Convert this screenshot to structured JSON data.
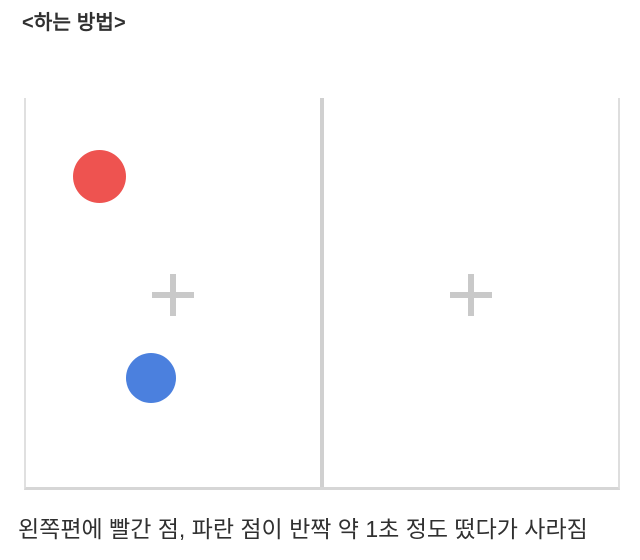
{
  "page": {
    "title": "<하는 방법>",
    "caption": "왼쪽편에 빨간 점, 파란 점이 반짝 약 1초 정도 떴다가 사라짐"
  },
  "display": {
    "left_panel": {
      "fixation_mark": "+",
      "stimuli": [
        {
          "name": "red-dot",
          "color": "#ee5350",
          "position": "upper-left"
        },
        {
          "name": "blue-dot",
          "color": "#4b80de",
          "position": "lower-middle"
        }
      ]
    },
    "right_panel": {
      "fixation_mark": "+",
      "stimuli": []
    }
  },
  "colors": {
    "red_dot": "#ee5350",
    "blue_dot": "#4b80de",
    "fixation_cross": "#c9c9c9",
    "panel_border": "#dedede",
    "divider": "#d0d0d0",
    "text": "#303030"
  }
}
